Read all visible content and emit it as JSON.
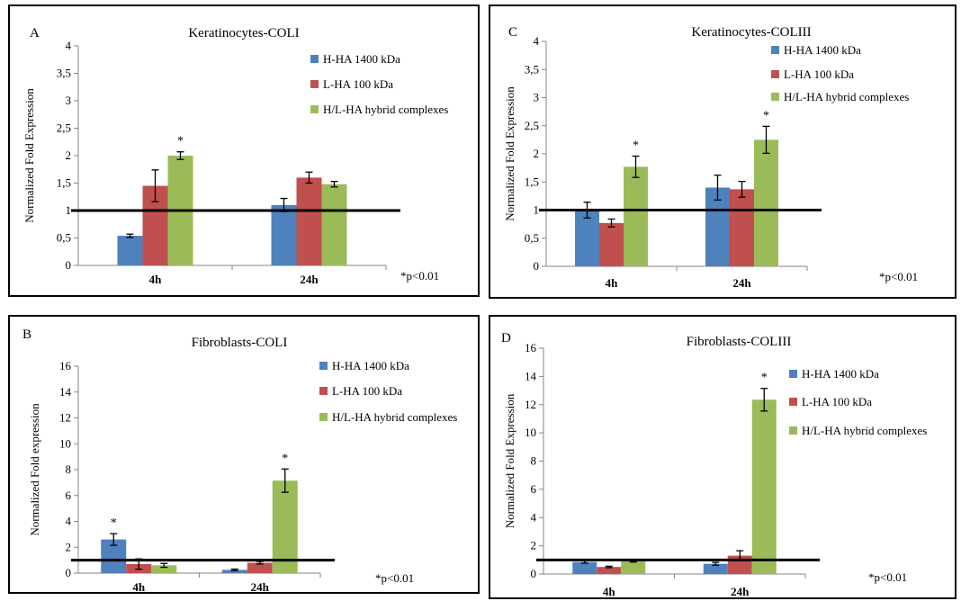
{
  "colors": {
    "H": "#4F81BD",
    "L": "#C0504D",
    "HL": "#9BBB59"
  },
  "chart_data": [
    {
      "id": "A",
      "type": "bar",
      "letter": "A",
      "title": "Keratinocytes-COLI",
      "ylabel": "Normalized Fold Expression",
      "categories": [
        "4h",
        "24h"
      ],
      "ylim": [
        0,
        4
      ],
      "ytick_values": [
        0,
        0.5,
        1,
        1.5,
        2,
        2.5,
        3,
        3.5,
        4
      ],
      "ytick_labels": [
        "0",
        "0,5",
        "1",
        "1,5",
        "2",
        "2,5",
        "3",
        "3,5",
        "4"
      ],
      "reference_line": 1,
      "series": [
        {
          "name": "H-HA 1400 kDa",
          "color": "#4F81BD",
          "values": [
            0.54,
            1.1
          ],
          "errors": [
            0.03,
            0.12
          ]
        },
        {
          "name": "L-HA 100 kDa",
          "color": "#C0504D",
          "values": [
            1.45,
            1.6
          ],
          "errors": [
            0.29,
            0.1
          ]
        },
        {
          "name": "H/L-HA hybrid complexes",
          "color": "#9BBB59",
          "values": [
            2.0,
            1.48
          ],
          "errors": [
            0.07,
            0.05
          ]
        }
      ],
      "significance": [
        [
          "",
          "",
          "*"
        ],
        [
          "",
          "",
          ""
        ]
      ],
      "note": "*p<0.01"
    },
    {
      "id": "C",
      "type": "bar",
      "letter": "C",
      "title": "Keratinocytes-COLIII",
      "ylabel": "Normalized Fold Expression",
      "categories": [
        "4h",
        "24h"
      ],
      "ylim": [
        0,
        4
      ],
      "ytick_values": [
        0,
        0.5,
        1,
        1.5,
        2,
        2.5,
        3,
        3.5,
        4
      ],
      "ytick_labels": [
        "0",
        "0,5",
        "1",
        "1,5",
        "2",
        "2,5",
        "3",
        "3,5",
        "4"
      ],
      "reference_line": 1,
      "series": [
        {
          "name": "H-HA 1400 kDa",
          "color": "#4F81BD",
          "values": [
            1.0,
            1.4
          ],
          "errors": [
            0.14,
            0.22
          ]
        },
        {
          "name": "L-HA 100 kDa",
          "color": "#C0504D",
          "values": [
            0.77,
            1.37
          ],
          "errors": [
            0.07,
            0.14
          ]
        },
        {
          "name": "H/L-HA hybrid complexes",
          "color": "#9BBB59",
          "values": [
            1.77,
            2.25
          ],
          "errors": [
            0.19,
            0.24
          ]
        }
      ],
      "significance": [
        [
          "",
          "",
          "*"
        ],
        [
          "",
          "",
          "*"
        ]
      ],
      "note": "*p<0.01"
    },
    {
      "id": "B",
      "type": "bar",
      "letter": "B",
      "title": "Fibroblasts-COLI",
      "ylabel": "Normalized Fold expression",
      "categories": [
        "4h",
        "24h"
      ],
      "ylim": [
        0,
        16
      ],
      "ytick_values": [
        0,
        2,
        4,
        6,
        8,
        10,
        12,
        14,
        16
      ],
      "ytick_labels": [
        "0",
        "2",
        "4",
        "6",
        "8",
        "10",
        "12",
        "14",
        "16"
      ],
      "reference_line": 1,
      "series": [
        {
          "name": "H-HA 1400 kDa",
          "color": "#4F81BD",
          "values": [
            2.6,
            0.25
          ],
          "errors": [
            0.45,
            0.06
          ]
        },
        {
          "name": "L-HA 100 kDa",
          "color": "#C0504D",
          "values": [
            0.7,
            0.8
          ],
          "errors": [
            0.4,
            0.1
          ]
        },
        {
          "name": "H/L-HA hybrid complexes",
          "color": "#9BBB59",
          "values": [
            0.6,
            7.15
          ],
          "errors": [
            0.15,
            0.9
          ]
        }
      ],
      "significance": [
        [
          "*",
          "",
          ""
        ],
        [
          "",
          "",
          "*"
        ]
      ],
      "note": "*p<0.01"
    },
    {
      "id": "D",
      "type": "bar",
      "letter": "D",
      "title": "Fibroblasts-COLIII",
      "ylabel": "Normalized Fold Expression",
      "categories": [
        "4h",
        "24h"
      ],
      "ylim": [
        0,
        16
      ],
      "ytick_values": [
        0,
        2,
        4,
        6,
        8,
        10,
        12,
        14,
        16
      ],
      "ytick_labels": [
        "0",
        "2",
        "4",
        "6",
        "8",
        "10",
        "12",
        "14",
        "16"
      ],
      "reference_line": 1,
      "series": [
        {
          "name": "H-HA 1400 kDa",
          "color": "#4F81BD",
          "values": [
            0.85,
            0.72
          ],
          "errors": [
            0.08,
            0.1
          ]
        },
        {
          "name": "L-HA 100 kDa",
          "color": "#C0504D",
          "values": [
            0.5,
            1.3
          ],
          "errors": [
            0.05,
            0.35
          ]
        },
        {
          "name": "H/L-HA hybrid complexes",
          "color": "#9BBB59",
          "values": [
            0.9,
            12.35
          ],
          "errors": [
            0.05,
            0.8
          ]
        }
      ],
      "significance": [
        [
          "",
          "",
          ""
        ],
        [
          "",
          "",
          "*"
        ]
      ],
      "note": "*p<0.01"
    }
  ]
}
